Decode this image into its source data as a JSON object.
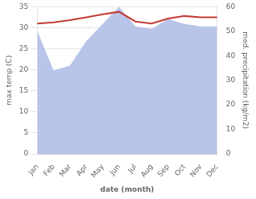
{
  "chart_data": {
    "type": "line",
    "xlabel": "date (month)",
    "ylabel": "max temp (C)",
    "y2label": "med. precipitation (kg/m2)",
    "categories": [
      "Jan",
      "Feb",
      "Mar",
      "Apr",
      "May",
      "Jun",
      "Jul",
      "Aug",
      "Sep",
      "Oct",
      "Nov",
      "Dec"
    ],
    "series": [
      {
        "type": "area",
        "axis": "y2",
        "color": "#b8c4e8",
        "values": [
          50.0,
          34.0,
          36.0,
          46.0,
          53.0,
          60.0,
          52.0,
          51.0,
          55.0,
          53.0,
          52.0,
          52.0
        ]
      },
      {
        "type": "line",
        "color": "#c43c35",
        "values": [
          31.0,
          31.3,
          31.8,
          32.5,
          33.2,
          33.8,
          31.5,
          31.0,
          32.2,
          32.8,
          32.5,
          32.5
        ]
      }
    ],
    "ylim": [
      0,
      35
    ],
    "yticks": [
      0,
      5,
      10,
      15,
      20,
      25,
      30,
      35
    ],
    "y2lim": [
      0,
      60
    ],
    "y2ticks": [
      0,
      10,
      20,
      30,
      40,
      50,
      60
    ],
    "grid": true
  }
}
